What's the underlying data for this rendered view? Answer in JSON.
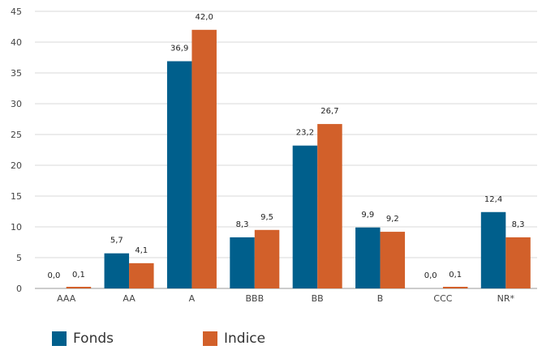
{
  "chart_data": {
    "type": "bar",
    "categories": [
      "AAA",
      "AA",
      "A",
      "BBB",
      "BB",
      "B",
      "CCC",
      "NR*"
    ],
    "series": [
      {
        "name": "Fonds",
        "color": "#005f8c",
        "values": [
          0.0,
          5.7,
          36.9,
          8.3,
          23.2,
          9.9,
          0.0,
          12.4
        ],
        "labels": [
          "0,0",
          "5,7",
          "36,9",
          "8,3",
          "23,2",
          "9,9",
          "0,0",
          "12,4"
        ]
      },
      {
        "name": "Indice",
        "color": "#d2602a",
        "values": [
          0.1,
          4.1,
          42.0,
          9.5,
          26.7,
          9.2,
          0.1,
          8.3
        ],
        "labels": [
          "0,1",
          "4,1",
          "42,0",
          "9,5",
          "26,7",
          "9,2",
          "0,1",
          "8,3"
        ]
      }
    ],
    "yticks": [
      "0",
      "5",
      "10",
      "15",
      "20",
      "25",
      "30",
      "35",
      "40",
      "45"
    ],
    "ylim": [
      0,
      45
    ],
    "grid": true,
    "legend_position": "bottom-left"
  }
}
